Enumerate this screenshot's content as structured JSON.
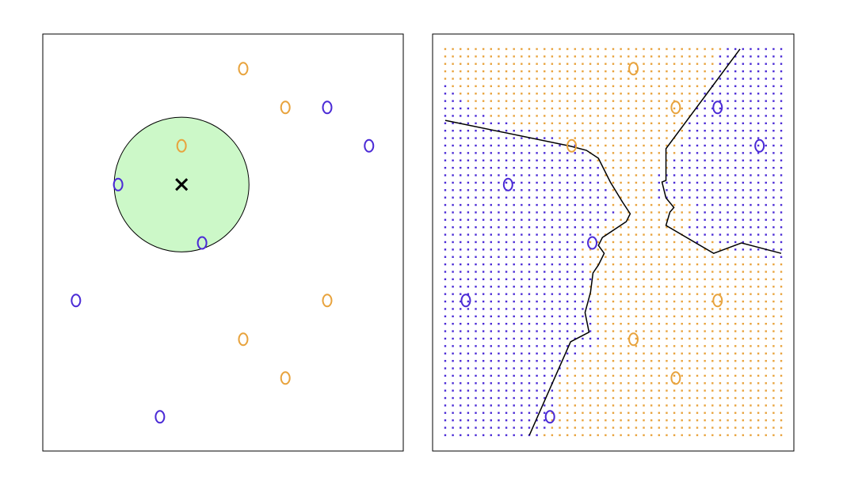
{
  "chart_data": [
    {
      "type": "scatter",
      "xlim": [
        0,
        1
      ],
      "ylim": [
        0,
        1
      ],
      "series": [
        {
          "color": "#e8a33d",
          "x": [
            0.556,
            0.673,
            0.385,
            0.789,
            0.556,
            0.673
          ],
          "values": [
            0.917,
            0.824,
            0.732,
            0.361,
            0.268,
            0.175
          ]
        },
        {
          "color": "#4b2bd6",
          "x": [
            0.789,
            0.905,
            0.209,
            0.442,
            0.092,
            0.325
          ],
          "values": [
            0.824,
            0.732,
            0.639,
            0.499,
            0.361,
            0.082
          ]
        }
      ],
      "test_point": [
        0.385,
        0.639
      ],
      "neighborhood_radius": 0.187,
      "neighborhood_color": "#ccf8c8"
    },
    {
      "type": "knn",
      "xlim": [
        0,
        1
      ],
      "ylim": [
        0,
        1
      ],
      "k": 3,
      "grid_range": [
        [
          0.035,
          0.965
        ],
        [
          0.038,
          0.964
        ]
      ],
      "grid_steps": [
        44,
        52
      ],
      "series": [
        {
          "color": "#e8a33d",
          "x": [
            0.556,
            0.673,
            0.385,
            0.789,
            0.556,
            0.673
          ],
          "values": [
            0.917,
            0.824,
            0.732,
            0.361,
            0.268,
            0.175
          ]
        },
        {
          "color": "#4b2bd6",
          "x": [
            0.789,
            0.905,
            0.209,
            0.442,
            0.092,
            0.325
          ],
          "values": [
            0.824,
            0.732,
            0.639,
            0.499,
            0.361,
            0.082
          ]
        }
      ],
      "boundary": [
        [
          [
            0.035,
            0.793
          ],
          [
            0.382,
            0.731
          ],
          [
            0.426,
            0.721
          ],
          [
            0.459,
            0.702
          ],
          [
            0.492,
            0.645
          ],
          [
            0.525,
            0.598
          ],
          [
            0.547,
            0.569
          ],
          [
            0.536,
            0.55
          ],
          [
            0.47,
            0.512
          ],
          [
            0.459,
            0.493
          ],
          [
            0.475,
            0.474
          ],
          [
            0.459,
            0.446
          ],
          [
            0.444,
            0.427
          ],
          [
            0.437,
            0.38
          ],
          [
            0.422,
            0.332
          ],
          [
            0.433,
            0.285
          ],
          [
            0.382,
            0.262
          ],
          [
            0.268,
            0.038
          ]
        ],
        [
          [
            0.851,
            0.964
          ],
          [
            0.646,
            0.725
          ],
          [
            0.646,
            0.649
          ],
          [
            0.635,
            0.645
          ],
          [
            0.646,
            0.607
          ],
          [
            0.668,
            0.584
          ],
          [
            0.657,
            0.573
          ],
          [
            0.646,
            0.541
          ],
          [
            0.778,
            0.474
          ],
          [
            0.855,
            0.499
          ],
          [
            0.965,
            0.474
          ]
        ]
      ]
    }
  ]
}
